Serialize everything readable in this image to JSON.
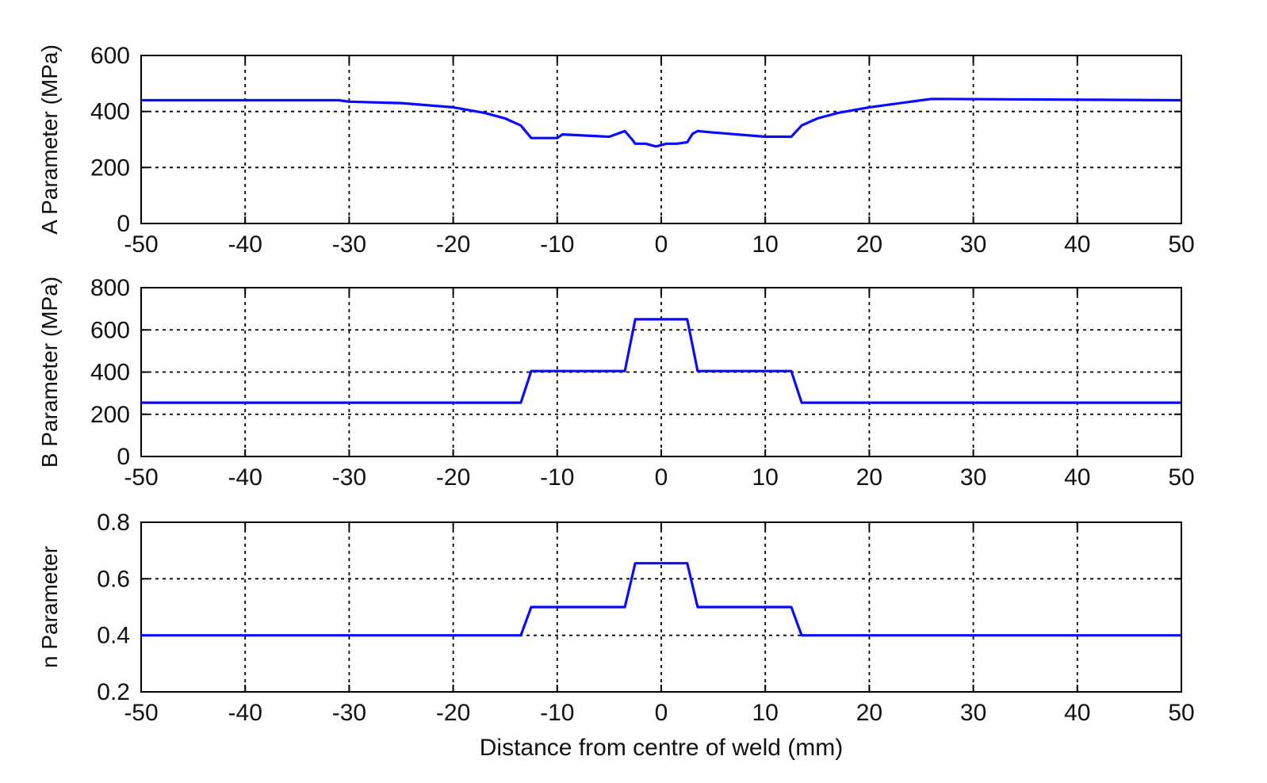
{
  "chart_data": [
    {
      "type": "line",
      "ylabel": "A Parameter (MPa)",
      "xlabel": "",
      "xlim": [
        -50,
        50
      ],
      "ylim": [
        0,
        600
      ],
      "xticks": [
        "-50",
        "-40",
        "-30",
        "-20",
        "-10",
        "0",
        "10",
        "20",
        "30",
        "40",
        "50"
      ],
      "yticks": [
        "0",
        "200",
        "400",
        "600"
      ],
      "grid": true,
      "color": "#0a0aff",
      "series": [
        {
          "x": [
            -50,
            -31,
            -30,
            -25,
            -20,
            -17,
            -15,
            -13.5,
            -12.5,
            -10,
            -9.5,
            -5,
            -3.5,
            -2.8,
            -2.5,
            -1.5,
            -0.5,
            0.5,
            1.5,
            2.5,
            3,
            3.5,
            5,
            10,
            12.5,
            13.5,
            15,
            17,
            20,
            25,
            26,
            50
          ],
          "y": [
            440,
            440,
            435,
            430,
            415,
            395,
            375,
            350,
            305,
            305,
            318,
            310,
            330,
            300,
            285,
            285,
            275,
            285,
            285,
            290,
            320,
            330,
            325,
            310,
            310,
            350,
            375,
            395,
            415,
            440,
            445,
            440
          ]
        }
      ]
    },
    {
      "type": "line",
      "ylabel": "B Parameter (MPa)",
      "xlabel": "",
      "xlim": [
        -50,
        50
      ],
      "ylim": [
        0,
        800
      ],
      "xticks": [
        "-50",
        "-40",
        "-30",
        "-20",
        "-10",
        "0",
        "10",
        "20",
        "30",
        "40",
        "50"
      ],
      "yticks": [
        "0",
        "200",
        "400",
        "600",
        "800"
      ],
      "grid": true,
      "color": "#0a0aff",
      "series": [
        {
          "x": [
            -50,
            -13.5,
            -12.5,
            -3.5,
            -2.5,
            2.5,
            3.5,
            12.5,
            13.5,
            50
          ],
          "y": [
            255,
            255,
            405,
            405,
            650,
            650,
            405,
            405,
            255,
            255
          ]
        }
      ]
    },
    {
      "type": "line",
      "ylabel": "n Parameter",
      "xlabel": "Distance from centre of weld (mm)",
      "xlim": [
        -50,
        50
      ],
      "ylim": [
        0.2,
        0.8
      ],
      "xticks": [
        "-50",
        "-40",
        "-30",
        "-20",
        "-10",
        "0",
        "10",
        "20",
        "30",
        "40",
        "50"
      ],
      "yticks": [
        "0.2",
        "0.4",
        "0.6",
        "0.8"
      ],
      "grid": true,
      "color": "#0a0aff",
      "series": [
        {
          "x": [
            -50,
            -13.5,
            -12.5,
            -3.5,
            -2.5,
            2.5,
            3.5,
            12.5,
            13.5,
            50
          ],
          "y": [
            0.4,
            0.4,
            0.5,
            0.5,
            0.655,
            0.655,
            0.5,
            0.5,
            0.4,
            0.4
          ]
        }
      ]
    }
  ]
}
